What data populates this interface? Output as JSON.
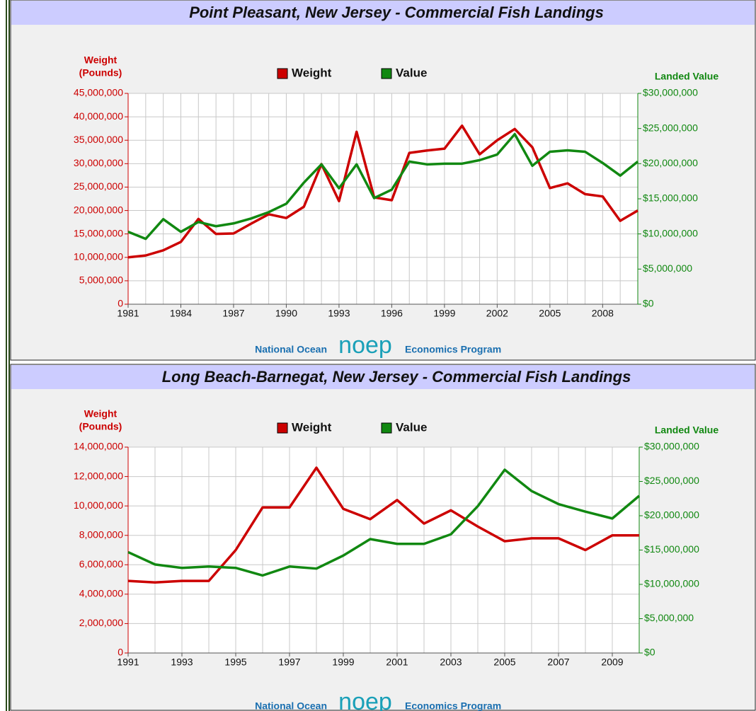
{
  "footer": {
    "left": "National Ocean",
    "logo": "noep",
    "right": "Economics Program"
  },
  "chart_data": [
    {
      "type": "line",
      "title": "Point Pleasant, New Jersey - Commercial Fish Landings",
      "ylabel": [
        "Weight",
        "(Pounds)"
      ],
      "y2label": "Landed Value",
      "x": [
        1981,
        1982,
        1983,
        1984,
        1985,
        1986,
        1987,
        1988,
        1989,
        1990,
        1991,
        1992,
        1993,
        1994,
        1995,
        1996,
        1997,
        1998,
        1999,
        2000,
        2001,
        2002,
        2003,
        2004,
        2005,
        2006,
        2007,
        2008,
        2009,
        2010
      ],
      "xlim": [
        1981,
        2010
      ],
      "xticks": [
        1981,
        1984,
        1987,
        1990,
        1993,
        1996,
        1999,
        2002,
        2005,
        2008
      ],
      "ylim": [
        0,
        45000000
      ],
      "yticks": [
        0,
        {
          "value": 5000000,
          "label": "5,000,000"
        },
        {
          "value": 10000000,
          "label": "10,000,000"
        },
        {
          "value": 15000000,
          "label": "15,000,000"
        },
        {
          "value": 20000000,
          "label": "20,000,000"
        },
        {
          "value": 25000000,
          "label": "25,000,000"
        },
        {
          "value": 30000000,
          "label": "30,000,000"
        },
        {
          "value": 35000000,
          "label": "35,000,000"
        },
        {
          "value": 40000000,
          "label": "40,000,000"
        },
        {
          "value": 45000000,
          "label": "45,000,000"
        }
      ],
      "y2lim": [
        0,
        30000000
      ],
      "y2ticks": [
        {
          "value": 0,
          "label": "$0"
        },
        {
          "value": 5000000,
          "label": "$5,000,000"
        },
        {
          "value": 10000000,
          "label": "$10,000,000"
        },
        {
          "value": 15000000,
          "label": "$15,000,000"
        },
        {
          "value": 20000000,
          "label": "$20,000,000"
        },
        {
          "value": 25000000,
          "label": "$25,000,000"
        },
        {
          "value": 30000000,
          "label": "$30,000,000"
        }
      ],
      "grid": true,
      "series": [
        {
          "name": "Weight",
          "color": "#cc0000",
          "axis": "y",
          "values": [
            10000000,
            10400000,
            11500000,
            13300000,
            18200000,
            15000000,
            15100000,
            17200000,
            19200000,
            18400000,
            20800000,
            29900000,
            22000000,
            36800000,
            22800000,
            22200000,
            32300000,
            32800000,
            33200000,
            38100000,
            32000000,
            35000000,
            37400000,
            33500000,
            24800000,
            25800000,
            23500000,
            23000000,
            17800000,
            20000000
          ]
        },
        {
          "name": "Value",
          "color": "#118811",
          "axis": "y2",
          "values": [
            10300000,
            9300000,
            12100000,
            10300000,
            11700000,
            11100000,
            11500000,
            12200000,
            13100000,
            14300000,
            17300000,
            19900000,
            16500000,
            19900000,
            15100000,
            16300000,
            20300000,
            19900000,
            20000000,
            20000000,
            20500000,
            21300000,
            24200000,
            19700000,
            21700000,
            21900000,
            21700000,
            20100000,
            18300000,
            20300000
          ]
        }
      ]
    },
    {
      "type": "line",
      "title": "Long Beach-Barnegat, New Jersey - Commercial Fish Landings",
      "ylabel": [
        "Weight",
        "(Pounds)"
      ],
      "y2label": "Landed Value",
      "x": [
        1991,
        1992,
        1993,
        1994,
        1995,
        1996,
        1997,
        1998,
        1999,
        2000,
        2001,
        2002,
        2003,
        2004,
        2005,
        2006,
        2007,
        2008,
        2009,
        2010
      ],
      "xlim": [
        1991,
        2010
      ],
      "xticks": [
        1991,
        1993,
        1995,
        1997,
        1999,
        2001,
        2003,
        2005,
        2007,
        2009
      ],
      "ylim": [
        0,
        14000000
      ],
      "yticks": [
        0,
        {
          "value": 2000000,
          "label": "2,000,000"
        },
        {
          "value": 4000000,
          "label": "4,000,000"
        },
        {
          "value": 6000000,
          "label": "6,000,000"
        },
        {
          "value": 8000000,
          "label": "8,000,000"
        },
        {
          "value": 10000000,
          "label": "10,000,000"
        },
        {
          "value": 12000000,
          "label": "12,000,000"
        },
        {
          "value": 14000000,
          "label": "14,000,000"
        }
      ],
      "y2lim": [
        0,
        30000000
      ],
      "y2ticks": [
        {
          "value": 0,
          "label": "$0"
        },
        {
          "value": 5000000,
          "label": "$5,000,000"
        },
        {
          "value": 10000000,
          "label": "$10,000,000"
        },
        {
          "value": 15000000,
          "label": "$15,000,000"
        },
        {
          "value": 20000000,
          "label": "$20,000,000"
        },
        {
          "value": 25000000,
          "label": "$25,000,000"
        },
        {
          "value": 30000000,
          "label": "$30,000,000"
        }
      ],
      "grid": true,
      "series": [
        {
          "name": "Weight",
          "color": "#cc0000",
          "axis": "y",
          "values": [
            4900000,
            4800000,
            4900000,
            4900000,
            7000000,
            9900000,
            9900000,
            12600000,
            9800000,
            9100000,
            10400000,
            8800000,
            9700000,
            8600000,
            7600000,
            7800000,
            7800000,
            7000000,
            8000000,
            8000000
          ]
        },
        {
          "name": "Value",
          "color": "#118811",
          "axis": "y2",
          "values": [
            14700000,
            12900000,
            12400000,
            12600000,
            12400000,
            11300000,
            12600000,
            12300000,
            14200000,
            16600000,
            15900000,
            15900000,
            17300000,
            21400000,
            26700000,
            23600000,
            21700000,
            20600000,
            19600000,
            22900000
          ]
        }
      ]
    }
  ]
}
